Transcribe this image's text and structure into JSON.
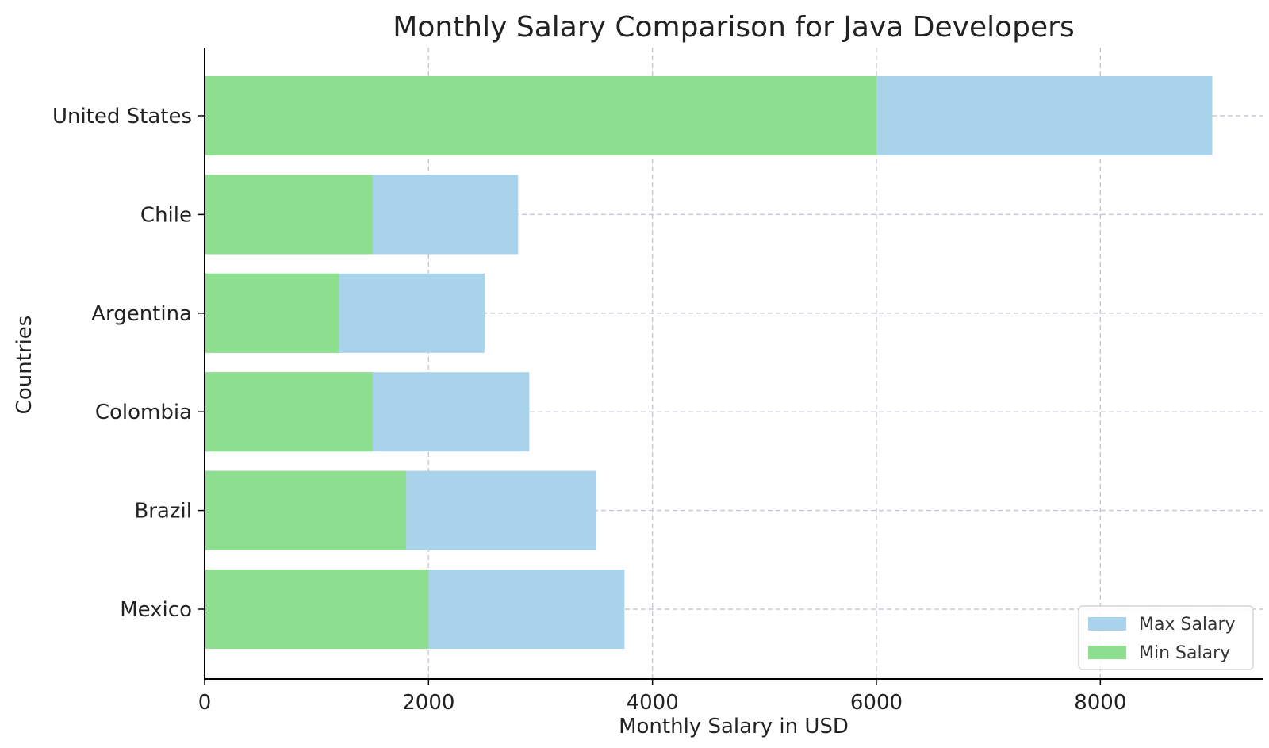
{
  "chart_data": {
    "type": "bar",
    "orientation": "horizontal",
    "stacked": false,
    "title": "Monthly Salary Comparison for Java Developers",
    "xlabel": "Monthly Salary in USD",
    "ylabel": "Countries",
    "xlim": [
      0,
      9450
    ],
    "xticks": [
      0,
      2000,
      4000,
      6000,
      8000
    ],
    "categories": [
      "United States",
      "Chile",
      "Argentina",
      "Colombia",
      "Brazil",
      "Mexico"
    ],
    "series": [
      {
        "name": "Max Salary",
        "color": "#a9d3ea",
        "values": [
          9000,
          2800,
          2500,
          2900,
          3500,
          3750
        ]
      },
      {
        "name": "Min Salary",
        "color": "#8ede8f",
        "values": [
          6000,
          1500,
          1200,
          1500,
          1800,
          2000
        ]
      }
    ],
    "grid": true,
    "legend_position": "bottom-right"
  }
}
